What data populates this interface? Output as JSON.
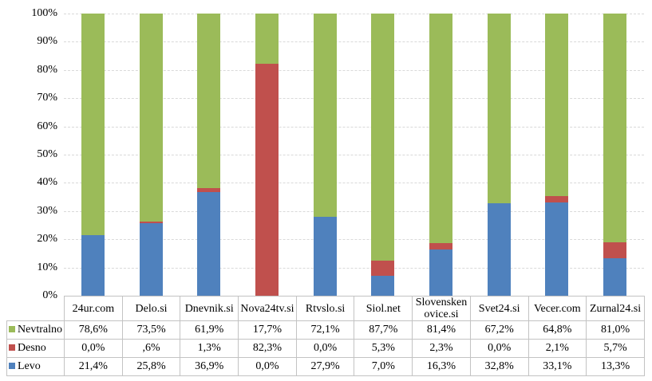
{
  "chart_data": {
    "type": "bar",
    "stacked": true,
    "title": "",
    "xlabel": "",
    "ylabel": "",
    "ylim": [
      0,
      100
    ],
    "grid": true,
    "legend_position": "data-table-left",
    "categories": [
      "24ur.com",
      "Delo.si",
      "Dnevnik.si",
      "Nova24tv.si",
      "Rtvslo.si",
      "Siol.net",
      "Slovenskenovice.si",
      "Svet24.si",
      "Vecer.com",
      "Zurnal24.si"
    ],
    "series": [
      {
        "name": "Levo",
        "color": "#4F81BD",
        "values": [
          21.4,
          25.8,
          36.9,
          0.0,
          27.9,
          7.0,
          16.3,
          32.8,
          33.1,
          13.3
        ]
      },
      {
        "name": "Desno",
        "color": "#C0504D",
        "values": [
          0.0,
          0.6,
          1.3,
          82.3,
          0.0,
          5.3,
          2.3,
          0.0,
          2.1,
          5.7
        ]
      },
      {
        "name": "Nevtralno",
        "color": "#9BBB59",
        "values": [
          78.6,
          73.5,
          61.9,
          17.7,
          72.1,
          87.7,
          81.4,
          67.2,
          64.8,
          81.0
        ]
      }
    ],
    "y_ticks": [
      "100%",
      "90%",
      "80%",
      "70%",
      "60%",
      "50%",
      "40%",
      "30%",
      "20%",
      "10%",
      "0%"
    ]
  },
  "table": {
    "corner_label": "",
    "rows": [
      {
        "label": "Nevtralno",
        "color": "#9BBB59",
        "values": [
          "78,6%",
          "73,5%",
          "61,9%",
          "17,7%",
          "72,1%",
          "87,7%",
          "81,4%",
          "67,2%",
          "64,8%",
          "81,0%"
        ]
      },
      {
        "label": "Desno",
        "color": "#C0504D",
        "values": [
          "0,0%",
          ",6%",
          "1,3%",
          "82,3%",
          "0,0%",
          "5,3%",
          "2,3%",
          "0,0%",
          "2,1%",
          "5,7%"
        ]
      },
      {
        "label": "Levo",
        "color": "#4F81BD",
        "values": [
          "21,4%",
          "25,8%",
          "36,9%",
          "0,0%",
          "27,9%",
          "7,0%",
          "16,3%",
          "32,8%",
          "33,1%",
          "13,3%"
        ]
      }
    ]
  }
}
